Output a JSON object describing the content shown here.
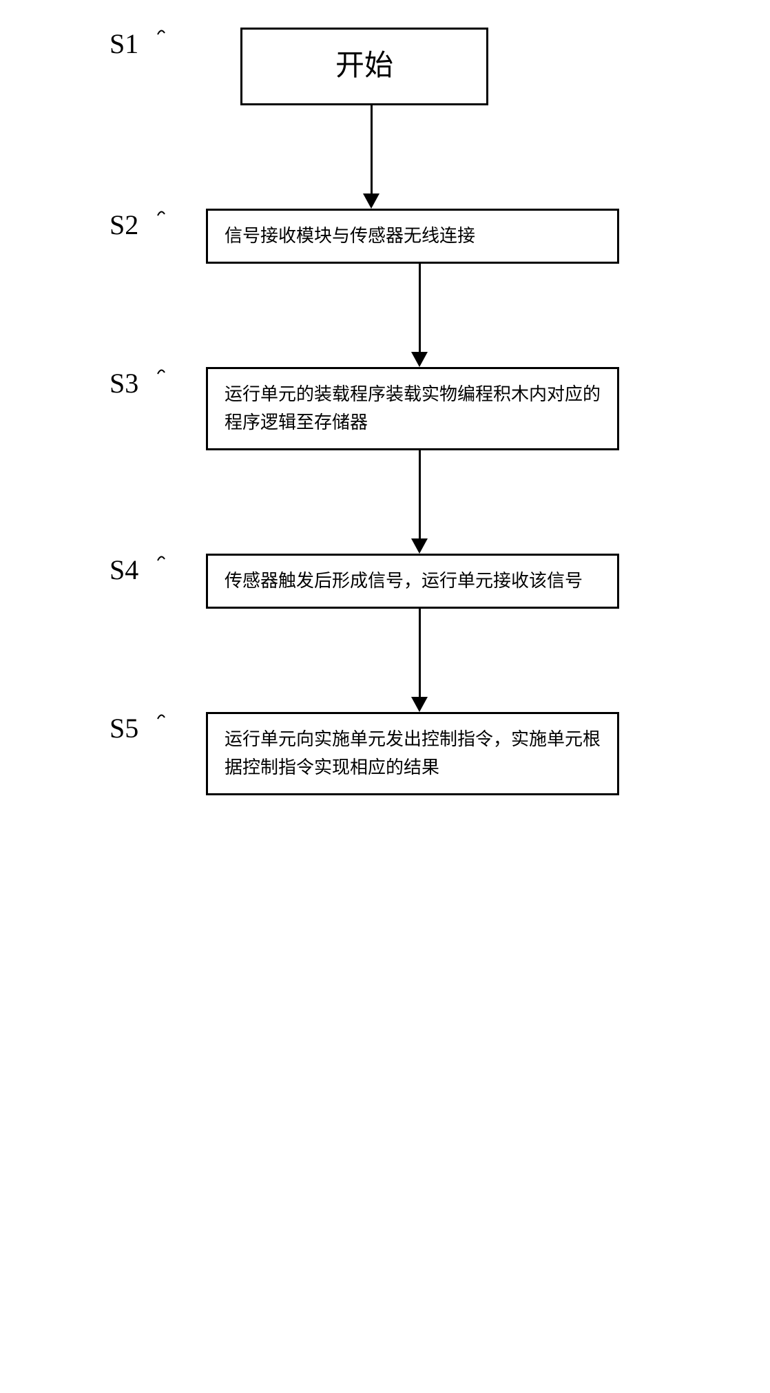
{
  "flowchart": {
    "type": "flowchart",
    "background_color": "#ffffff",
    "border_color": "#000000",
    "text_color": "#000000",
    "border_width": 3,
    "label_fontsize": 40,
    "box_fontsize": 26,
    "start_fontsize": 42,
    "arrow_height": 130,
    "steps": [
      {
        "id": "S1",
        "label": "S1",
        "text": "开始",
        "is_start": true
      },
      {
        "id": "S2",
        "label": "S2",
        "text": "信号接收模块与传感器无线连接"
      },
      {
        "id": "S3",
        "label": "S3",
        "text": "运行单元的装载程序装载实物编程积木内对应的程序逻辑至存储器"
      },
      {
        "id": "S4",
        "label": "S4",
        "text": "传感器触发后形成信号，运行单元接收该信号"
      },
      {
        "id": "S5",
        "label": "S5",
        "text": "运行单元向实施单元发出控制指令，实施单元根据控制指令实现相应的结果"
      }
    ]
  }
}
